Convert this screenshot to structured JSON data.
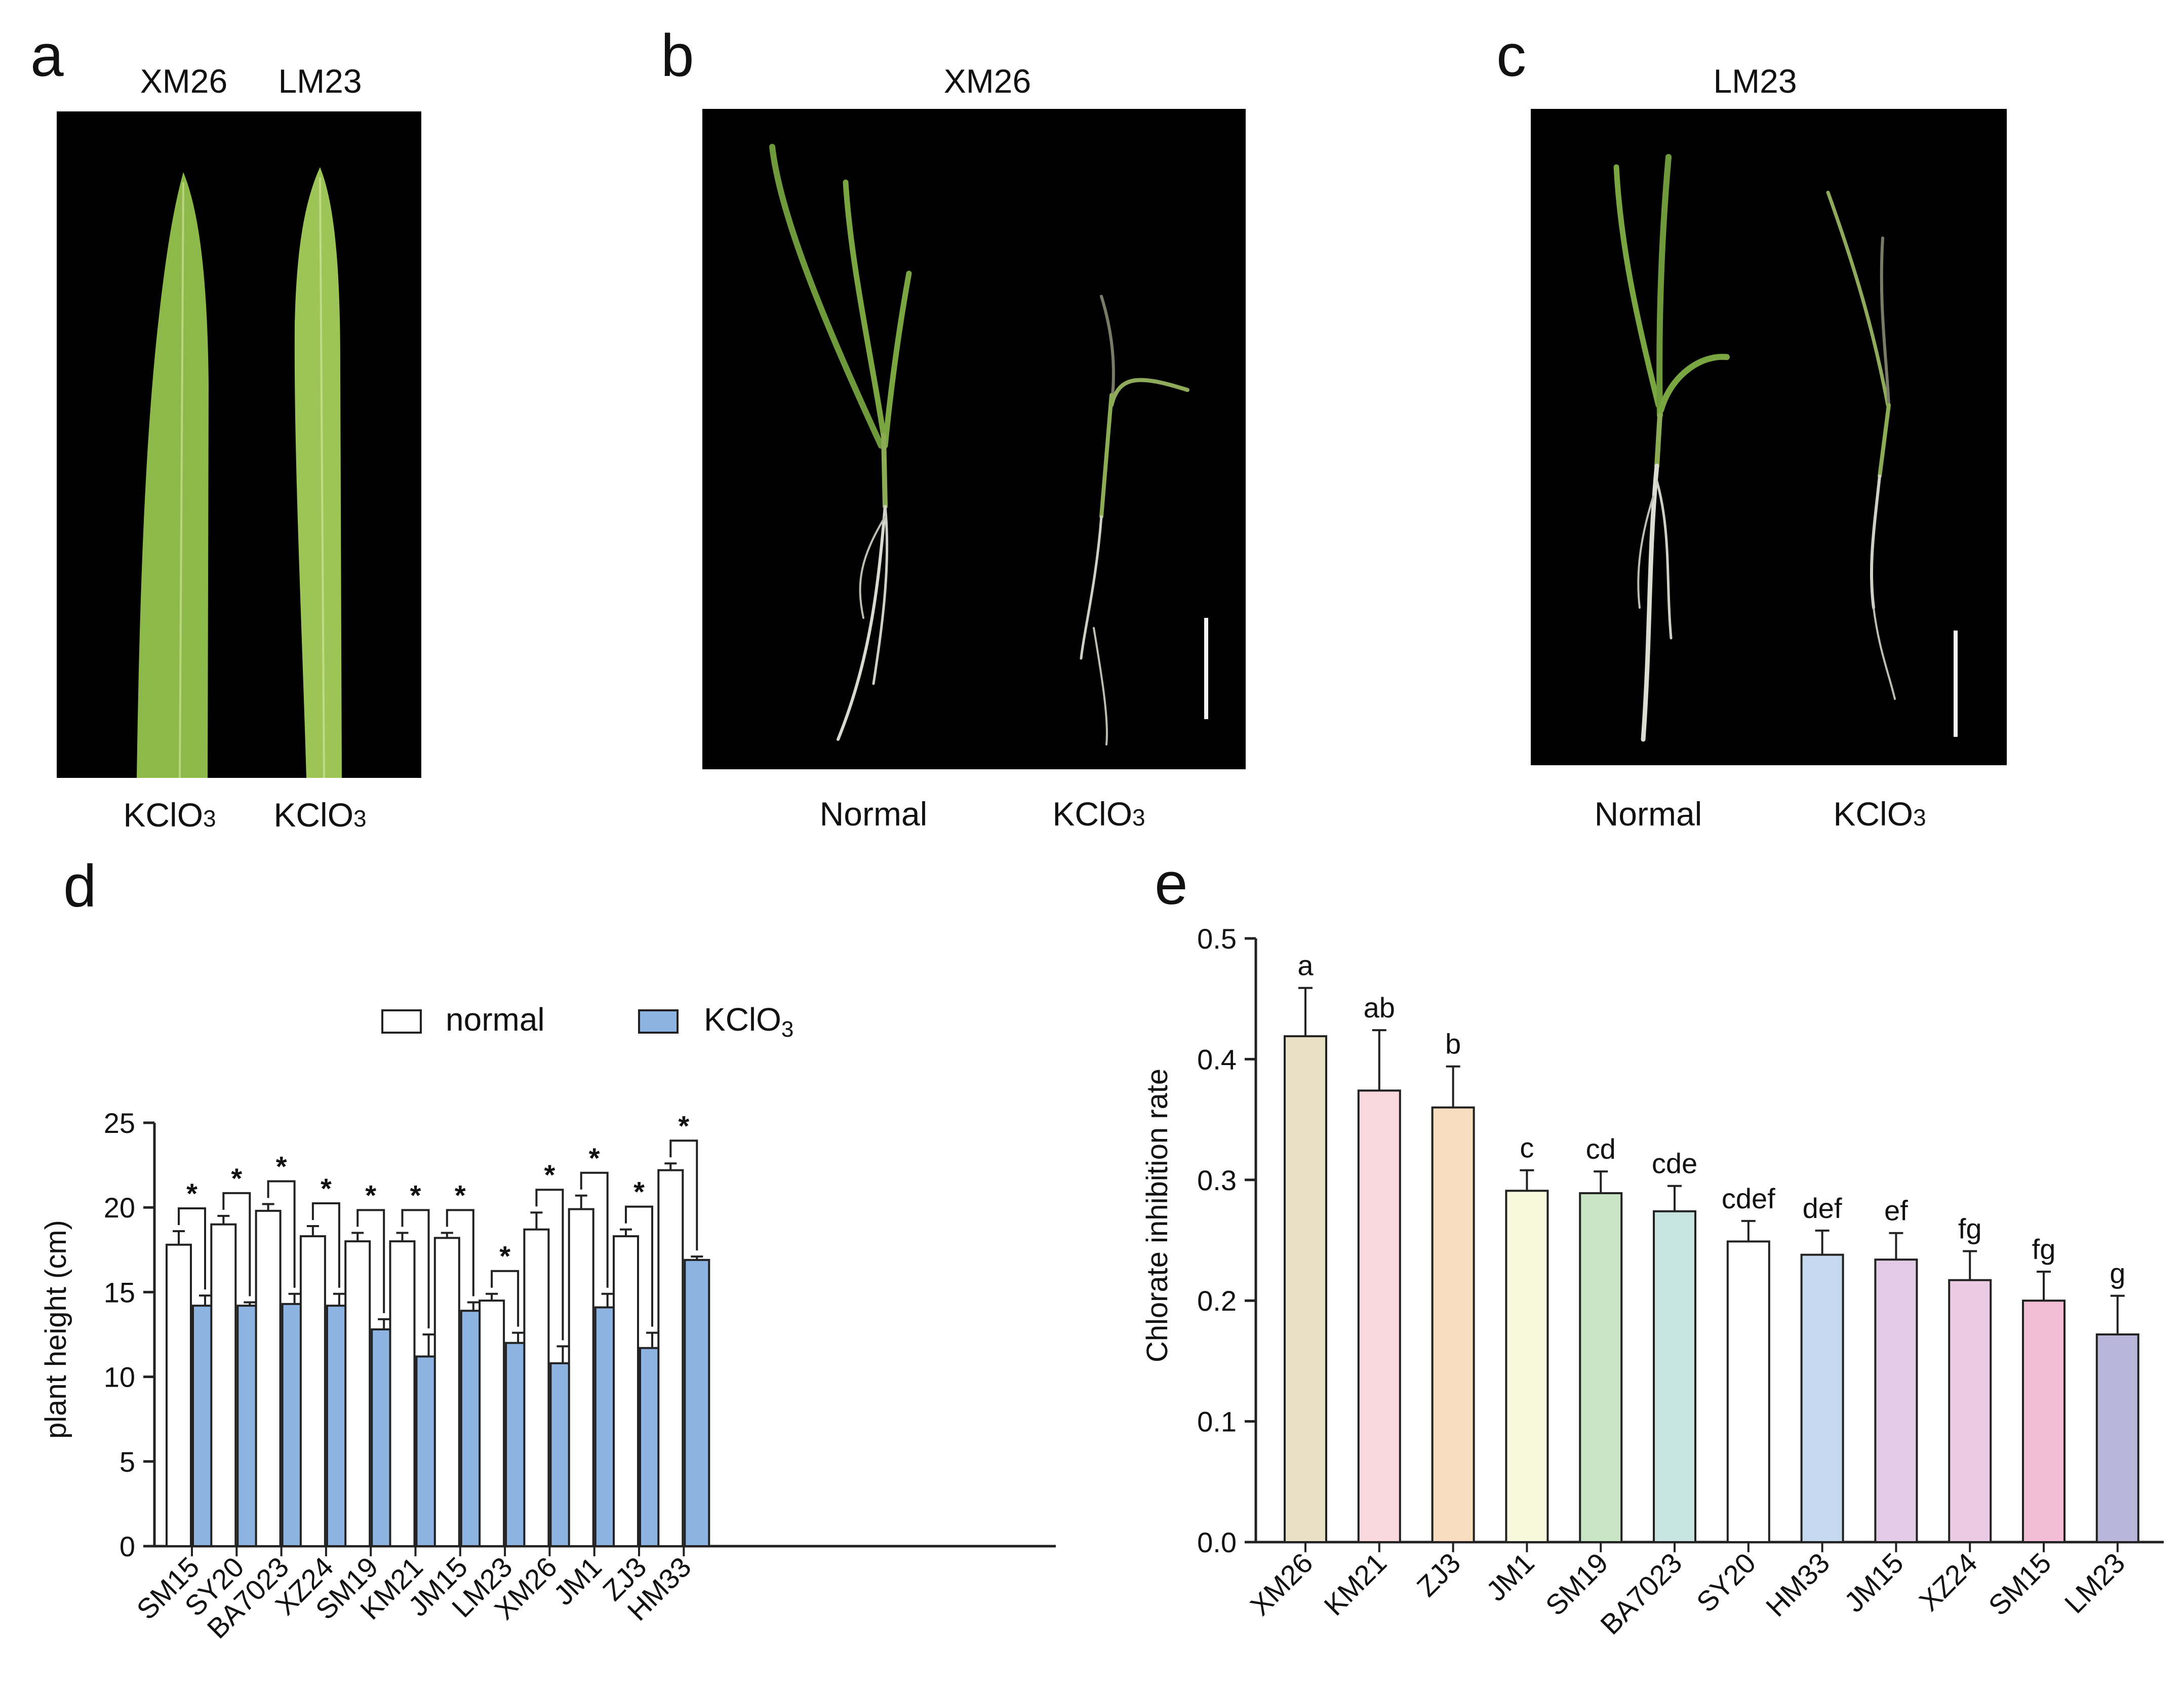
{
  "panels": {
    "a": {
      "letter": "a",
      "col_labels": [
        "XM26",
        "LM23"
      ],
      "bottom_labels": [
        "KClO",
        "KClO"
      ],
      "sub": "3"
    },
    "b": {
      "letter": "b",
      "title": "XM26",
      "bottom_labels": [
        "Normal",
        "KClO"
      ],
      "sub": "3"
    },
    "c": {
      "letter": "c",
      "title": "LM23",
      "bottom_labels": [
        "Normal",
        "KClO"
      ],
      "sub": "3"
    },
    "d": {
      "letter": "d"
    },
    "e": {
      "letter": "e"
    }
  },
  "colors": {
    "leaf_green": "#8db84a",
    "stem_green": "#6f9a3c",
    "root_white": "#d9d9d0",
    "kclo3_blue": "#8db3e2"
  },
  "chart_data": [
    {
      "type": "bar",
      "panel": "d",
      "categories": [
        "SM15",
        "SY20",
        "BA7023",
        "XZ24",
        "SM19",
        "KM21",
        "JM15",
        "LM23",
        "XM26",
        "JM1",
        "ZJ3",
        "HM33"
      ],
      "series": [
        {
          "name": "normal",
          "values": [
            17.8,
            19.0,
            19.8,
            18.3,
            18.0,
            18.0,
            18.2,
            14.5,
            18.7,
            19.9,
            18.3,
            22.2
          ],
          "errors": [
            0.8,
            0.5,
            0.4,
            0.6,
            0.5,
            0.5,
            0.3,
            0.4,
            1.0,
            0.8,
            0.4,
            0.4
          ],
          "color": "#ffffff"
        },
        {
          "name": "KClO",
          "name_sub": "3",
          "values": [
            14.2,
            14.2,
            14.3,
            14.2,
            12.8,
            11.2,
            13.9,
            12.0,
            10.8,
            14.1,
            11.7,
            16.9
          ],
          "errors": [
            0.6,
            0.2,
            0.6,
            0.7,
            0.6,
            1.3,
            0.5,
            0.6,
            1.0,
            0.8,
            0.9,
            0.2
          ],
          "color": "#8db3e2"
        }
      ],
      "significance": [
        "*",
        "*",
        "*",
        "*",
        "*",
        "*",
        "*",
        "*",
        "*",
        "*",
        "*",
        "*"
      ],
      "ylabel": "plant height (cm)",
      "ylim": [
        0,
        25
      ],
      "yticks": [
        0,
        5,
        10,
        15,
        20,
        25
      ],
      "legend": "top-center"
    },
    {
      "type": "bar",
      "panel": "e",
      "categories": [
        "XM26",
        "KM21",
        "ZJ3",
        "JM1",
        "SM19",
        "BA7023",
        "SY20",
        "HM33",
        "JM15",
        "XZ24",
        "SM15",
        "LM23"
      ],
      "values": [
        0.419,
        0.374,
        0.36,
        0.291,
        0.289,
        0.274,
        0.249,
        0.238,
        0.234,
        0.217,
        0.2,
        0.172
      ],
      "errors": [
        0.04,
        0.05,
        0.034,
        0.017,
        0.018,
        0.021,
        0.017,
        0.02,
        0.022,
        0.024,
        0.024,
        0.032
      ],
      "letters": [
        "a",
        "ab",
        "b",
        "c",
        "cd",
        "cde",
        "cdef",
        "def",
        "ef",
        "fg",
        "fg",
        "g"
      ],
      "colors": [
        "#e8e1c6",
        "#f9d9de",
        "#f8dcbf",
        "#f8f8dd",
        "#c9e4c3",
        "#c8e4e0",
        "#ffffff",
        "#c6daef",
        "#e2cbe5",
        "#eacbe3",
        "#f4bdd6",
        "#b8b6db"
      ],
      "ylabel": "Chlorate inhibition rate",
      "ylim": [
        0,
        0.5
      ],
      "yticks": [
        "0.0",
        "0.1",
        "0.2",
        "0.3",
        "0.4",
        "0.5"
      ]
    }
  ]
}
